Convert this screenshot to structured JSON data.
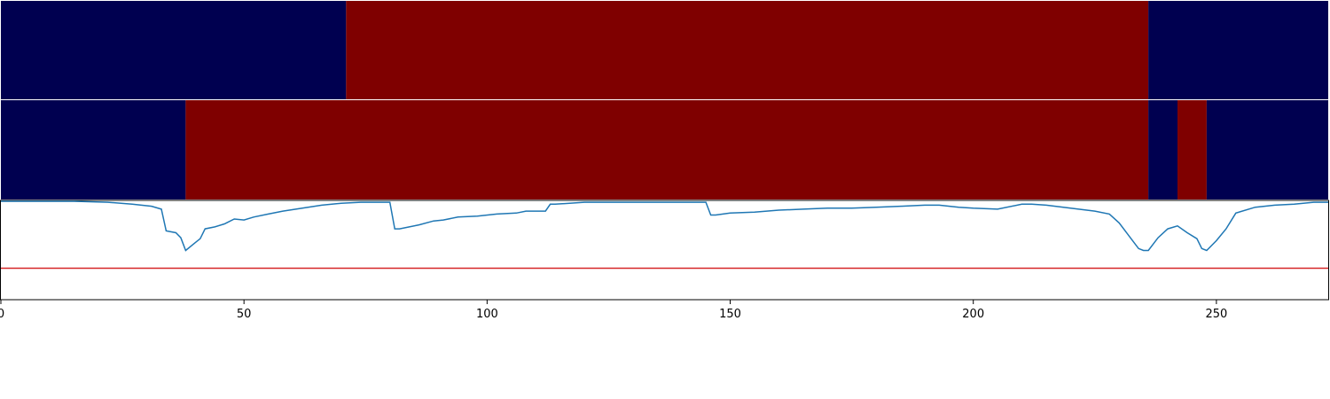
{
  "chart_data": {
    "type": "line",
    "title": "",
    "xlabel": "",
    "ylabel": "",
    "xlim": [
      0,
      273
    ],
    "ylim": [
      0,
      1
    ],
    "x_ticks": [
      "0",
      "50",
      "100",
      "150",
      "200",
      "250"
    ],
    "x_tick_values": [
      0,
      50,
      100,
      150,
      200,
      250
    ],
    "colors": {
      "state_low": "#000050",
      "state_high": "#7f0000",
      "series_line": "#1f77b4",
      "threshold_line": "#d62728"
    },
    "state_tracks": [
      {
        "segments": [
          {
            "start": 0,
            "end": 71,
            "state": "low"
          },
          {
            "start": 71,
            "end": 236,
            "state": "high"
          },
          {
            "start": 236,
            "end": 273,
            "state": "low"
          }
        ]
      },
      {
        "segments": [
          {
            "start": 0,
            "end": 38,
            "state": "low"
          },
          {
            "start": 38,
            "end": 236,
            "state": "high"
          },
          {
            "start": 236,
            "end": 242,
            "state": "low"
          },
          {
            "start": 242,
            "end": 248,
            "state": "high"
          },
          {
            "start": 248,
            "end": 273,
            "state": "low"
          }
        ]
      }
    ],
    "threshold": 0.32,
    "series": [
      {
        "x": [
          0,
          15,
          22,
          27,
          31,
          33,
          34,
          36,
          37,
          38,
          40,
          41,
          42,
          44,
          46,
          48,
          50,
          52,
          55,
          58,
          62,
          66,
          70,
          74,
          80,
          81,
          82,
          84,
          86,
          89,
          91,
          94,
          98,
          102,
          106,
          108,
          112,
          113,
          114,
          120,
          122,
          124,
          130,
          140,
          145,
          146,
          147,
          150,
          155,
          160,
          165,
          170,
          175,
          180,
          185,
          190,
          193,
          197,
          200,
          205,
          210,
          212,
          215,
          220,
          225,
          228,
          230,
          232,
          234,
          235,
          236,
          238,
          240,
          242,
          244,
          246,
          247,
          248,
          250,
          252,
          254,
          258,
          262,
          266,
          270,
          273
        ],
        "y": [
          1.0,
          1.0,
          0.99,
          0.97,
          0.95,
          0.92,
          0.7,
          0.68,
          0.63,
          0.5,
          0.58,
          0.62,
          0.72,
          0.74,
          0.77,
          0.82,
          0.81,
          0.84,
          0.87,
          0.9,
          0.93,
          0.96,
          0.98,
          0.99,
          0.99,
          0.72,
          0.72,
          0.74,
          0.76,
          0.8,
          0.81,
          0.84,
          0.85,
          0.87,
          0.88,
          0.9,
          0.9,
          0.97,
          0.97,
          0.99,
          0.99,
          0.99,
          0.99,
          0.99,
          0.99,
          0.86,
          0.86,
          0.88,
          0.89,
          0.91,
          0.92,
          0.93,
          0.93,
          0.94,
          0.95,
          0.96,
          0.96,
          0.94,
          0.93,
          0.92,
          0.97,
          0.97,
          0.96,
          0.93,
          0.9,
          0.87,
          0.78,
          0.65,
          0.52,
          0.5,
          0.5,
          0.63,
          0.72,
          0.75,
          0.68,
          0.62,
          0.52,
          0.5,
          0.6,
          0.72,
          0.88,
          0.94,
          0.96,
          0.97,
          0.99,
          0.99
        ]
      }
    ]
  }
}
